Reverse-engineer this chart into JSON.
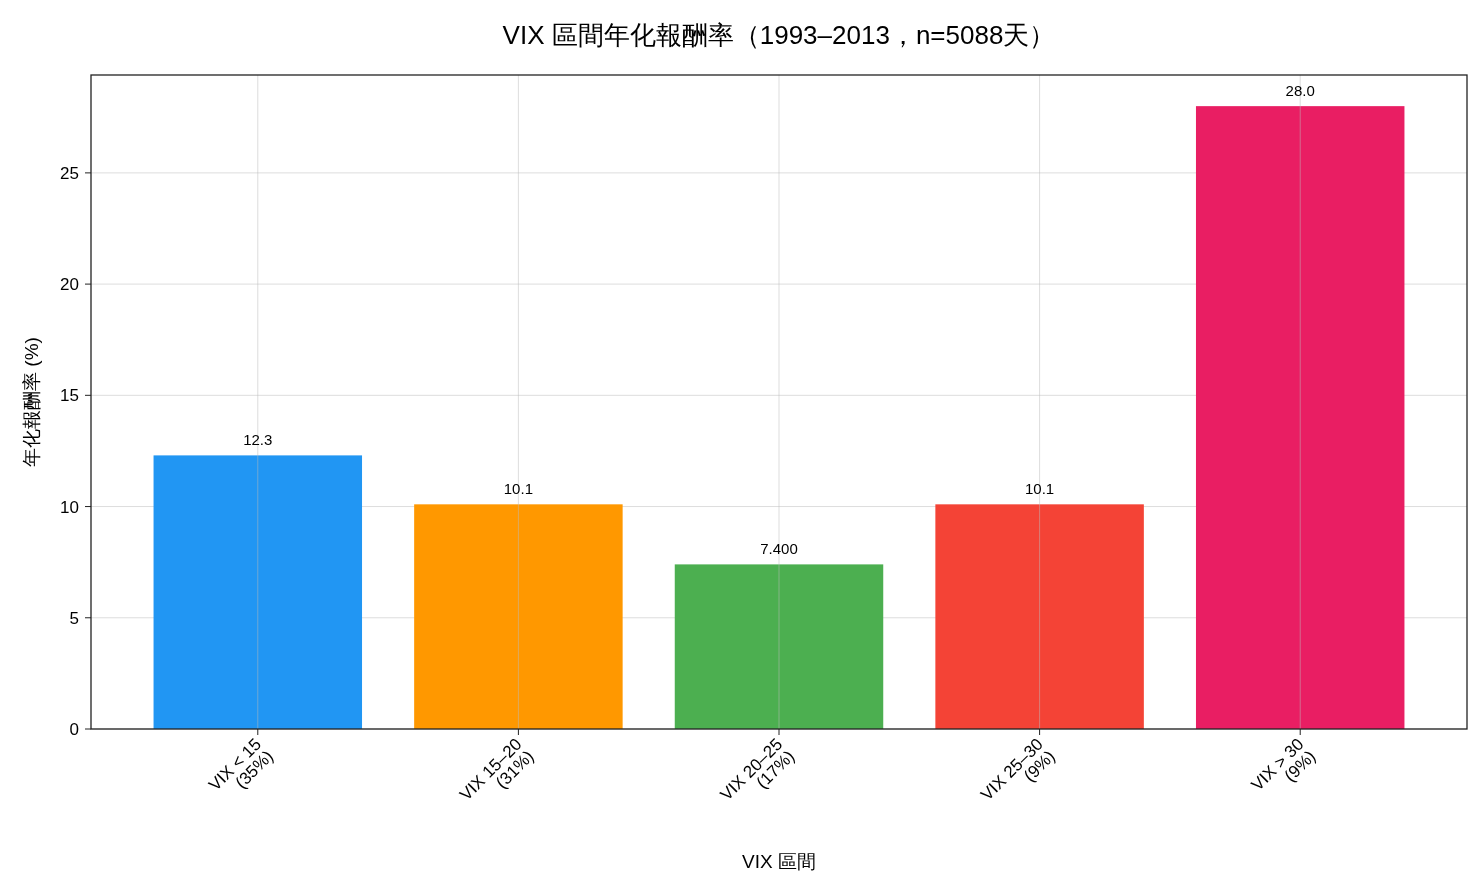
{
  "chart_data": {
    "type": "bar",
    "title": "VIX 區間年化報酬率（1993–2013，n=5088天）",
    "xlabel": "VIX 區間",
    "ylabel": "年化報酬率 (%)",
    "categories": [
      "VIX < 15\n(35%)",
      "VIX 15–20\n(31%)",
      "VIX 20–25\n(17%)",
      "VIX 25–30\n(9%)",
      "VIX > 30\n(9%)"
    ],
    "values": [
      12.3,
      10.1,
      7.4,
      10.1,
      28.0
    ],
    "colors": [
      "#2196f3",
      "#ff9800",
      "#4caf50",
      "#f44336",
      "#e91e63"
    ],
    "value_labels": [
      "12.3",
      "10.1",
      "7.400",
      "10.1",
      "28.0"
    ],
    "ylim": [
      0,
      29.4
    ],
    "yticks": [
      0,
      5,
      10,
      15,
      20,
      25
    ],
    "grid": true
  }
}
